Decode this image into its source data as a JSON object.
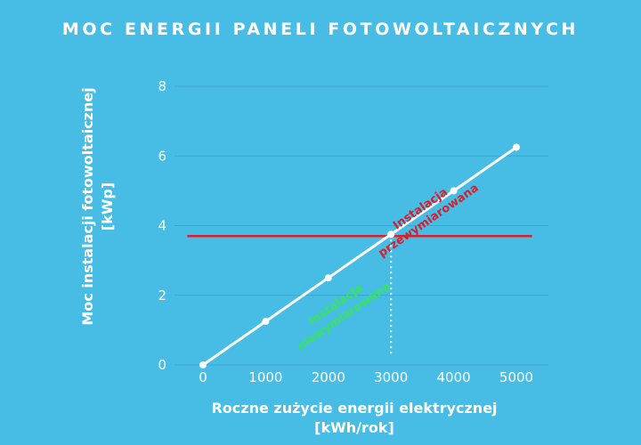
{
  "chart_data": {
    "type": "line",
    "title": "MOC ENERGII PANELI FOTOWOLTAICZNYCH",
    "xlabel": [
      "Roczne zużycie energii elektrycznej",
      "[kWh/rok]"
    ],
    "ylabel": [
      "Moc instalacji fotowoltaicznej",
      "[kWp]"
    ],
    "x_ticks": [
      "0",
      "1000",
      "2000",
      "3000",
      "4000",
      "5000"
    ],
    "y_ticks": [
      "0",
      "2",
      "4",
      "6",
      "8"
    ],
    "xlim": [
      0,
      5000
    ],
    "ylim": [
      0,
      8
    ],
    "grid": true,
    "series": [
      {
        "x": [
          0,
          1000,
          2000,
          3000,
          4000,
          5000
        ],
        "y": [
          0,
          1.25,
          2.5,
          3.75,
          5.0,
          6.25
        ],
        "color": "#ffffff"
      }
    ],
    "reference_line": {
      "y": 3.7,
      "x_range": [
        -250,
        5250
      ],
      "color": "#e01e2b"
    },
    "marker_line": {
      "x": 3000,
      "style": "dotted",
      "color": "#ffffff"
    },
    "annotations": [
      {
        "lines": [
          "Instalacja",
          "przewymiarowana"
        ],
        "x": 3500,
        "y": 4.4,
        "color": "#d61f2c"
      },
      {
        "lines": [
          "Instalacja",
          "niewymiarowana"
        ],
        "x": 2150,
        "y": 1.65,
        "color": "#39e35a"
      }
    ]
  }
}
